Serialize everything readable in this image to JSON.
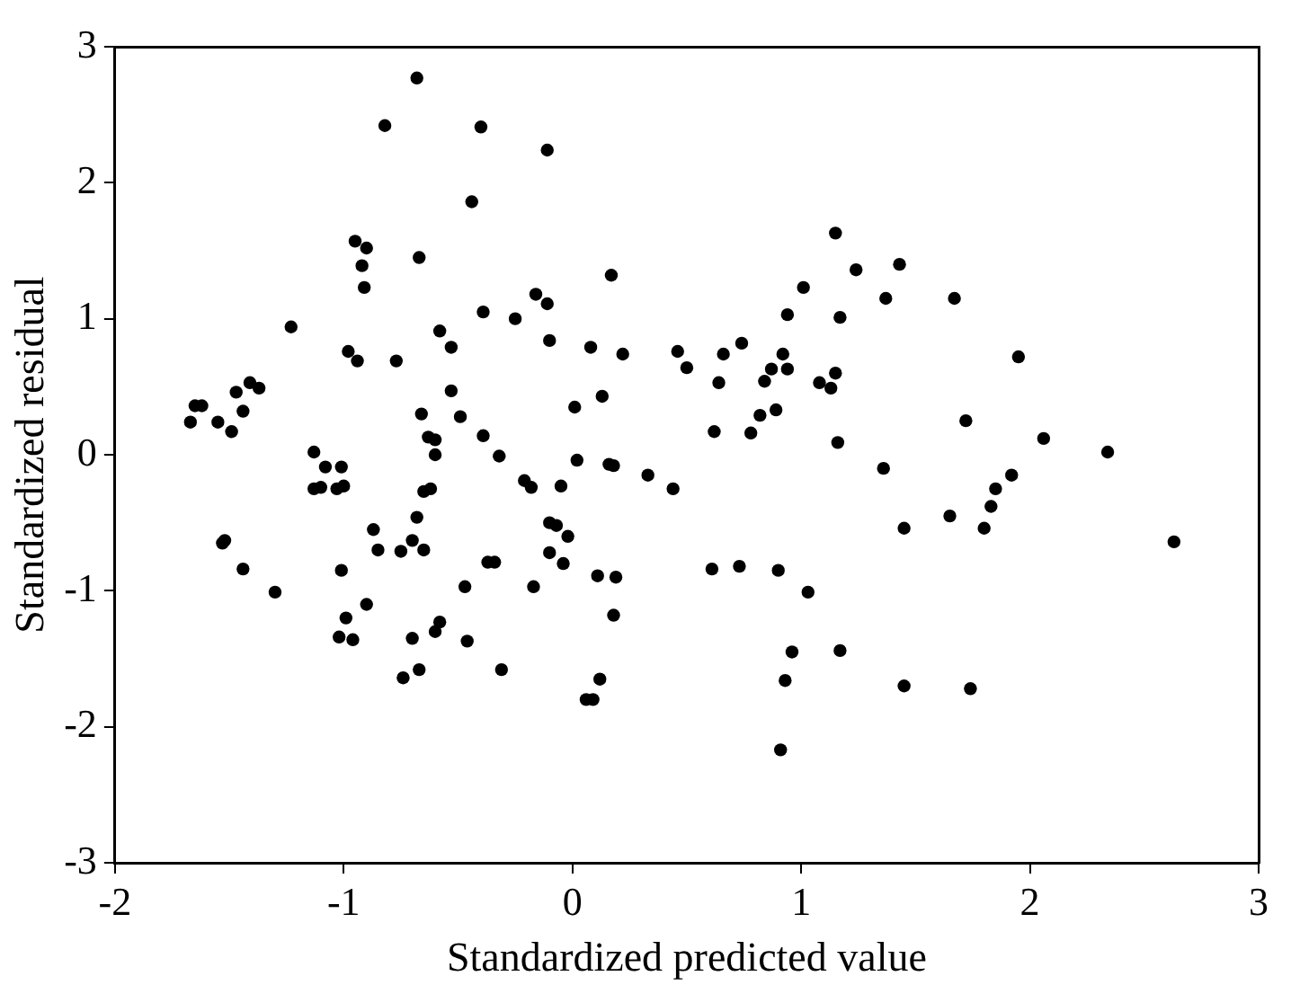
{
  "chart_data": {
    "type": "scatter",
    "xlabel": "Standardized predicted value",
    "ylabel": "Standardized residual",
    "xlim": [
      -2,
      3
    ],
    "xticks": [
      -2,
      -1,
      0,
      1,
      2,
      3
    ],
    "ylim": [
      -3,
      3
    ],
    "yticks": [
      -3,
      -2,
      -1,
      0,
      1,
      2,
      3
    ],
    "grid": false,
    "legend": false,
    "marker": "circle",
    "series": [
      {
        "color": "#000000",
        "x": [
          -0.68,
          -0.82,
          -0.4,
          -0.44,
          -0.95,
          -0.9,
          -0.92,
          -0.91,
          -0.67,
          -1.23,
          -0.39,
          -0.58,
          -0.53,
          -0.98,
          -0.94,
          -0.77,
          -0.53,
          -0.49,
          -0.66,
          -0.39,
          -0.63,
          -0.6,
          -0.6,
          -0.32,
          -1.13,
          -1.65,
          -1.62,
          -1.67,
          -1.55,
          -1.49,
          -1.44,
          -1.47,
          -1.41,
          -1.37,
          -1.08,
          -1.01,
          -1.13,
          -1.1,
          -1.03,
          -1.0,
          -1.53,
          -1.52,
          -1.44,
          -1.3,
          -1.01,
          -0.87,
          -0.85,
          -0.75,
          -0.7,
          -0.65,
          -0.68,
          -0.65,
          -0.62,
          -0.37,
          -0.34,
          -0.47,
          -0.9,
          -0.99,
          -1.02,
          -0.96,
          -0.7,
          -0.6,
          -0.58,
          -0.46,
          -0.74,
          -0.67,
          -0.31,
          -0.11,
          1.15,
          1.24,
          1.37,
          0.17,
          -0.16,
          -0.11,
          -0.25,
          -0.1,
          0.08,
          0.22,
          0.46,
          0.5,
          0.66,
          0.74,
          0.64,
          0.92,
          0.87,
          0.94,
          0.84,
          0.94,
          1.01,
          1.17,
          1.15,
          1.08,
          1.13,
          0.89,
          0.82,
          0.78,
          0.62,
          1.16,
          0.01,
          0.13,
          0.02,
          0.16,
          0.18,
          0.33,
          0.44,
          -0.21,
          -0.18,
          -0.05,
          -0.1,
          -0.07,
          -0.02,
          -0.1,
          -0.04,
          -0.17,
          0.11,
          0.19,
          0.18,
          0.61,
          0.73,
          0.9,
          1.03,
          0.96,
          1.17,
          0.93,
          0.12,
          0.06,
          0.09,
          0.91,
          1.36,
          1.43,
          1.67,
          1.95,
          1.72,
          2.06,
          2.34,
          1.92,
          1.85,
          1.83,
          1.8,
          1.65,
          1.45,
          2.63,
          1.45,
          1.74
        ],
        "values": [
          2.77,
          2.42,
          2.41,
          1.86,
          1.57,
          1.52,
          1.39,
          1.23,
          1.45,
          0.94,
          1.05,
          0.91,
          0.79,
          0.76,
          0.69,
          0.69,
          0.47,
          0.28,
          0.3,
          0.14,
          0.13,
          0.11,
          0.0,
          -0.01,
          0.02,
          0.36,
          0.36,
          0.24,
          0.24,
          0.17,
          0.32,
          0.46,
          0.53,
          0.49,
          -0.09,
          -0.09,
          -0.25,
          -0.24,
          -0.25,
          -0.23,
          -0.65,
          -0.63,
          -0.84,
          -1.01,
          -0.85,
          -0.55,
          -0.7,
          -0.71,
          -0.63,
          -0.7,
          -0.46,
          -0.27,
          -0.25,
          -0.79,
          -0.79,
          -0.97,
          -1.1,
          -1.2,
          -1.34,
          -1.36,
          -1.35,
          -1.3,
          -1.23,
          -1.37,
          -1.64,
          -1.58,
          -1.58,
          2.24,
          1.63,
          1.36,
          1.15,
          1.32,
          1.18,
          1.11,
          1.0,
          0.84,
          0.79,
          0.74,
          0.76,
          0.64,
          0.74,
          0.82,
          0.53,
          0.74,
          0.63,
          0.63,
          0.54,
          1.03,
          1.23,
          1.01,
          0.6,
          0.53,
          0.49,
          0.33,
          0.29,
          0.16,
          0.17,
          0.09,
          0.35,
          0.43,
          -0.04,
          -0.07,
          -0.08,
          -0.15,
          -0.25,
          -0.19,
          -0.24,
          -0.23,
          -0.5,
          -0.52,
          -0.6,
          -0.72,
          -0.8,
          -0.97,
          -0.89,
          -0.9,
          -1.18,
          -0.84,
          -0.82,
          -0.85,
          -1.01,
          -1.45,
          -1.44,
          -1.66,
          -1.65,
          -1.8,
          -1.8,
          -2.17,
          -0.1,
          1.4,
          1.15,
          0.72,
          0.25,
          0.12,
          0.02,
          -0.15,
          -0.25,
          -0.38,
          -0.54,
          -0.45,
          -0.54,
          -0.64,
          -1.7,
          -1.72
        ]
      }
    ]
  }
}
